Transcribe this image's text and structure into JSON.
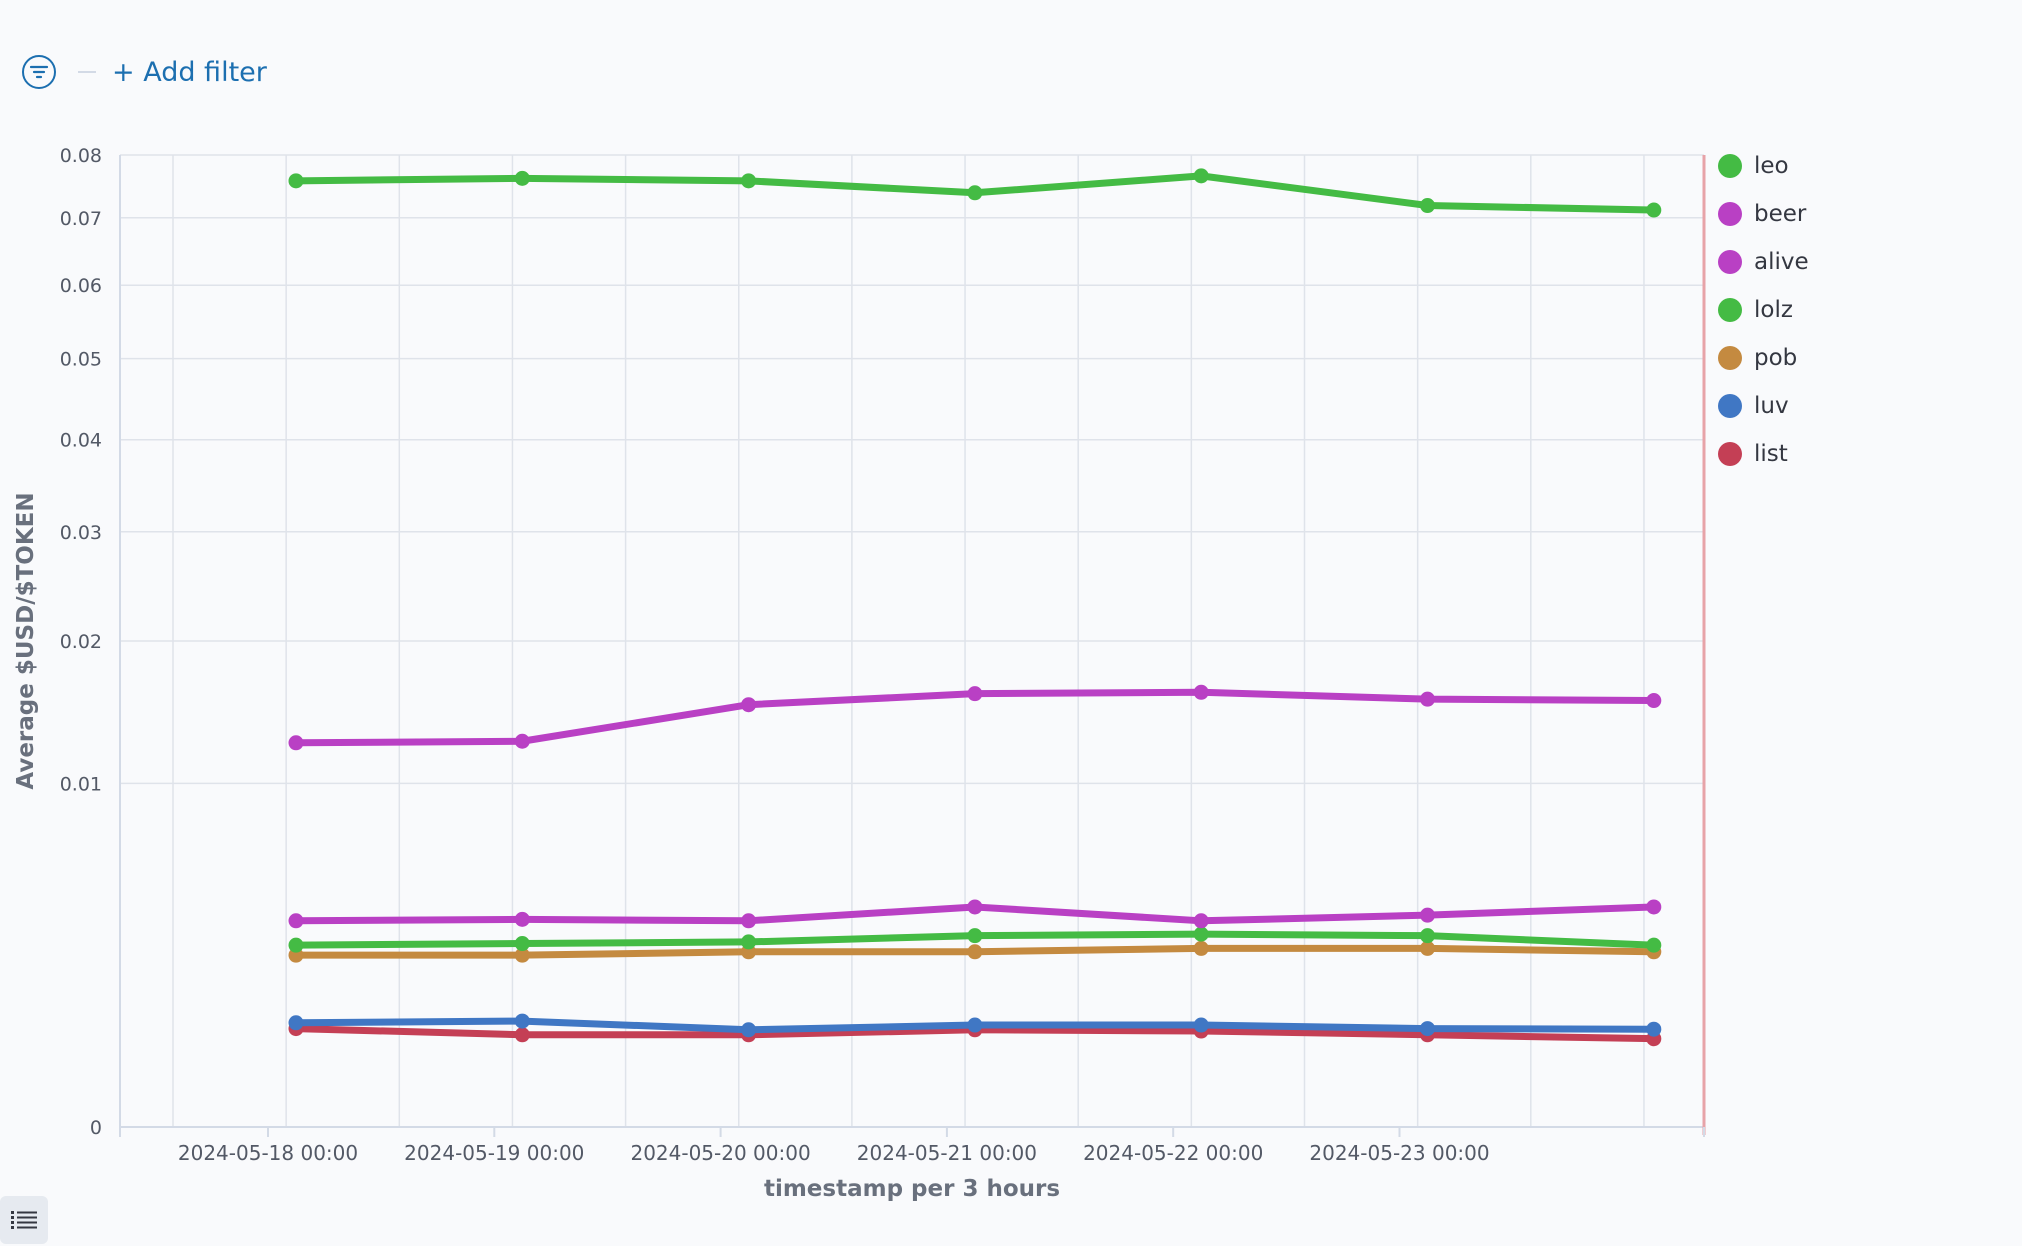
{
  "toolbar": {
    "add_filter_label": "+ Add filter"
  },
  "chart_data": {
    "type": "line",
    "xlabel": "timestamp per 3 hours",
    "ylabel": "Average $USD/$TOKEN",
    "y_scale": "sqrt",
    "ylim": [
      0,
      0.08
    ],
    "yticks": [
      0,
      0.01,
      0.02,
      0.03,
      0.04,
      0.05,
      0.06,
      0.07,
      0.08
    ],
    "ytick_labels": [
      "0",
      "0.01",
      "0.02",
      "0.03",
      "0.04",
      "0.05",
      "0.06",
      "0.07",
      "0.08"
    ],
    "xtick_labels": [
      "2024-05-18 00:00",
      "2024-05-19 00:00",
      "2024-05-20 00:00",
      "2024-05-21 00:00",
      "2024-05-22 00:00",
      "2024-05-23 00:00"
    ],
    "x": [
      "2024-05-18 00:00",
      "2024-05-19 00:00",
      "2024-05-20 00:00",
      "2024-05-21 00:00",
      "2024-05-22 00:00",
      "2024-05-23 00:00",
      "2024-05-24 00:00"
    ],
    "grid": true,
    "legend_position": "right",
    "series": [
      {
        "name": "leo",
        "color": "#44bb44",
        "values": [
          0.0758,
          0.0762,
          0.0758,
          0.0739,
          0.0766,
          0.0719,
          0.0712
        ]
      },
      {
        "name": "beer",
        "color": "#b940c4",
        "values": [
          0.0125,
          0.0126,
          0.0151,
          0.0159,
          0.016,
          0.0155,
          0.0154
        ]
      },
      {
        "name": "alive",
        "color": "#b940c4",
        "values": [
          0.0036,
          0.00365,
          0.0036,
          0.0041,
          0.0036,
          0.0038,
          0.0041
        ]
      },
      {
        "name": "lolz",
        "color": "#44bb44",
        "values": [
          0.0028,
          0.00285,
          0.0029,
          0.0031,
          0.00315,
          0.0031,
          0.0028
        ]
      },
      {
        "name": "pob",
        "color": "#c48a40",
        "values": [
          0.0025,
          0.0025,
          0.0026,
          0.0026,
          0.0027,
          0.0027,
          0.0026
        ]
      },
      {
        "name": "luv",
        "color": "#4077c4",
        "values": [
          0.00092,
          0.00095,
          0.0008,
          0.00088,
          0.00088,
          0.00082,
          0.00081
        ]
      },
      {
        "name": "list",
        "color": "#c43f55",
        "values": [
          0.00082,
          0.00072,
          0.00072,
          0.0008,
          0.00078,
          0.00072,
          0.00066
        ]
      }
    ]
  }
}
